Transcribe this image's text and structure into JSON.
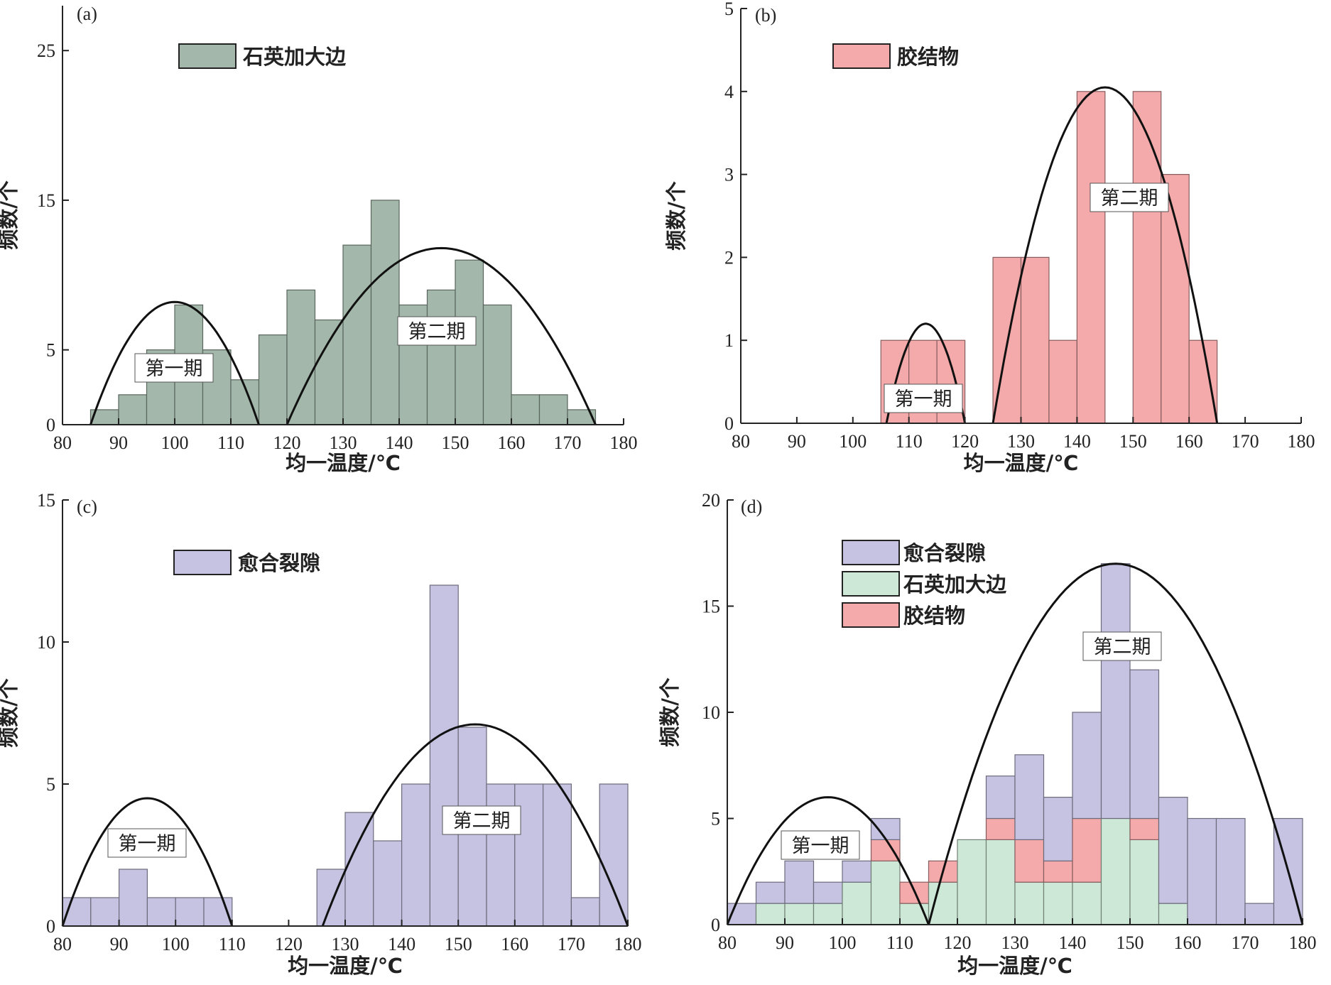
{
  "chart_data": [
    {
      "panel_label": "(a)",
      "type": "bar",
      "xlabel": "均一温度/℃",
      "ylabel": "频数/个",
      "xlim": [
        80,
        180
      ],
      "ylim": [
        0,
        28
      ],
      "xticks": [
        80,
        90,
        100,
        110,
        120,
        130,
        140,
        150,
        160,
        170,
        180
      ],
      "yticks": [
        0,
        5,
        15,
        25
      ],
      "bin_width": 5,
      "series": [
        {
          "name": "石英加大边",
          "color": "#a3b8aa",
          "x": [
            85,
            90,
            95,
            100,
            105,
            110,
            115,
            120,
            125,
            130,
            135,
            140,
            145,
            150,
            155,
            160,
            165,
            170
          ],
          "values": [
            1,
            2,
            5,
            8,
            5,
            3,
            6,
            9,
            7,
            12,
            15,
            8,
            9,
            11,
            8,
            2,
            2,
            1
          ]
        }
      ],
      "curves": [
        {
          "label": "第一期",
          "x_range": [
            85,
            115
          ],
          "peak": 8.2
        },
        {
          "label": "第二期",
          "x_range": [
            120,
            175
          ],
          "peak": 11.8
        }
      ],
      "legend_position": "top-left"
    },
    {
      "panel_label": "(b)",
      "type": "bar",
      "xlabel": "均一温度/℃",
      "ylabel": "频数/个",
      "xlim": [
        80,
        180
      ],
      "ylim": [
        0,
        5
      ],
      "xticks": [
        80,
        90,
        100,
        110,
        120,
        130,
        140,
        150,
        160,
        170,
        180
      ],
      "yticks": [
        0,
        1,
        2,
        3,
        4,
        5
      ],
      "bin_width": 5,
      "series": [
        {
          "name": "胶结物",
          "color": "#f4a9ab",
          "x": [
            105,
            110,
            115,
            125,
            130,
            135,
            140,
            150,
            155,
            160
          ],
          "values": [
            1,
            1,
            1,
            2,
            2,
            1,
            4,
            4,
            3,
            1
          ]
        }
      ],
      "curves": [
        {
          "label": "第一期",
          "x_range": [
            106,
            120
          ],
          "peak": 1.2
        },
        {
          "label": "第二期",
          "x_range": [
            125,
            165
          ],
          "peak": 4.05
        }
      ],
      "legend_position": "top-left"
    },
    {
      "panel_label": "(c)",
      "type": "bar",
      "xlabel": "均一温度/℃",
      "ylabel": "频数/个",
      "xlim": [
        80,
        180
      ],
      "ylim": [
        0,
        15
      ],
      "xticks": [
        80,
        90,
        100,
        110,
        120,
        130,
        140,
        150,
        160,
        170,
        180
      ],
      "yticks": [
        0,
        5,
        10,
        15
      ],
      "bin_width": 5,
      "series": [
        {
          "name": "愈合裂隙",
          "color": "#c5c2e2",
          "x": [
            80,
            85,
            90,
            95,
            100,
            105,
            125,
            130,
            135,
            140,
            145,
            150,
            155,
            160,
            165,
            170,
            175
          ],
          "values": [
            1,
            1,
            2,
            1,
            1,
            1,
            2,
            4,
            3,
            5,
            12,
            7,
            5,
            5,
            5,
            1,
            5
          ]
        }
      ],
      "curves": [
        {
          "label": "第一期",
          "x_range": [
            80,
            110
          ],
          "peak": 4.5
        },
        {
          "label": "第二期",
          "x_range": [
            126,
            180
          ],
          "peak": 7.1
        }
      ],
      "legend_position": "top-left"
    },
    {
      "panel_label": "(d)",
      "type": "bar",
      "stacked": true,
      "xlabel": "均一温度/℃",
      "ylabel": "频数/个",
      "xlim": [
        80,
        180
      ],
      "ylim": [
        0,
        20
      ],
      "xticks": [
        80,
        90,
        100,
        110,
        120,
        130,
        140,
        150,
        160,
        170,
        180
      ],
      "yticks": [
        0,
        5,
        10,
        15,
        20
      ],
      "bin_width": 5,
      "categories": [
        80,
        85,
        90,
        95,
        100,
        105,
        110,
        115,
        120,
        125,
        130,
        135,
        140,
        145,
        150,
        155,
        160,
        165,
        170,
        175
      ],
      "series": [
        {
          "name": "愈合裂隙",
          "color": "#c5c2e2",
          "values": [
            1,
            1,
            2,
            1,
            1,
            1,
            0,
            0,
            0,
            2,
            4,
            3,
            5,
            12,
            7,
            5,
            5,
            5,
            1,
            5
          ]
        },
        {
          "name": "石英加大边",
          "color": "#cde8d6",
          "values": [
            0,
            1,
            1,
            1,
            2,
            3,
            1,
            2,
            4,
            4,
            2,
            2,
            2,
            5,
            4,
            1,
            0,
            0,
            0,
            0
          ]
        },
        {
          "name": "胶结物",
          "color": "#f4a9ab",
          "values": [
            0,
            0,
            0,
            0,
            0,
            1,
            1,
            1,
            0,
            1,
            2,
            1,
            3,
            0,
            1,
            0,
            0,
            0,
            0,
            0
          ]
        }
      ],
      "stack_order_bottom_to_top": [
        "石英加大边",
        "胶结物",
        "愈合裂隙"
      ],
      "curves": [
        {
          "label": "第一期",
          "x_range": [
            80,
            115
          ],
          "peak": 6
        },
        {
          "label": "第二期",
          "x_range": [
            115,
            180
          ],
          "peak": 17
        }
      ],
      "legend_position": "top-left"
    }
  ]
}
